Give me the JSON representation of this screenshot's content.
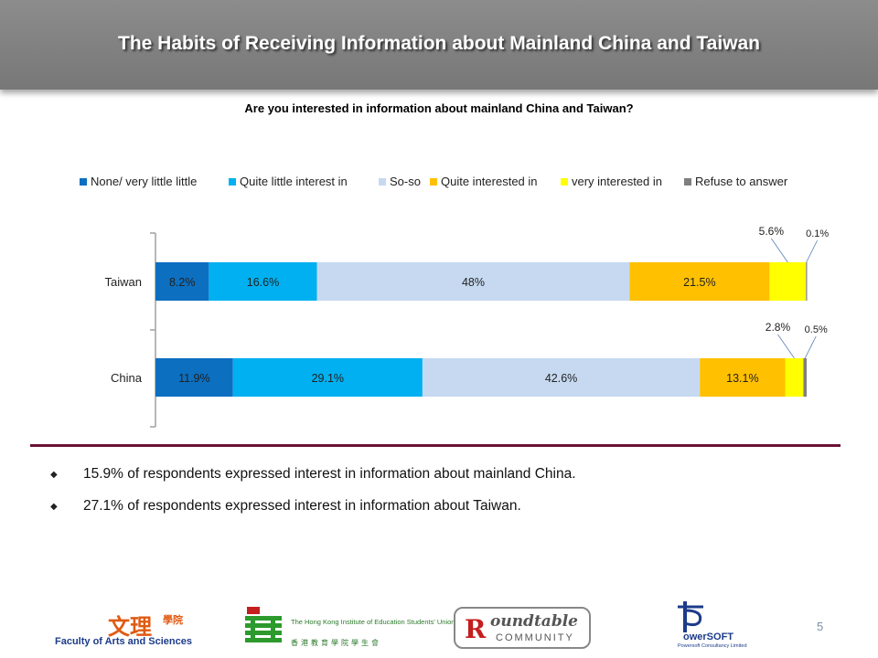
{
  "slide": {
    "title": "The Habits of Receiving Information about Mainland China and Taiwan",
    "page_number": "5"
  },
  "chart_data": {
    "type": "bar",
    "orientation": "horizontal",
    "stacked": true,
    "title": "Are you interested in information about mainland China and Taiwan?",
    "categories": [
      "Taiwan",
      "China"
    ],
    "series": [
      {
        "name": "None/ very little little",
        "values": [
          8.2,
          11.9
        ],
        "labels": [
          "8.2%",
          "11.9%"
        ],
        "color": "#0c6fc0"
      },
      {
        "name": "Quite little interest in",
        "values": [
          16.6,
          29.1
        ],
        "labels": [
          "16.6%",
          "29.1%"
        ],
        "color": "#00b0f0"
      },
      {
        "name": "So-so",
        "values": [
          48,
          42.6
        ],
        "labels": [
          "48%",
          "42.6%"
        ],
        "color": "#c6d9f1"
      },
      {
        "name": "Quite interested in",
        "values": [
          21.5,
          13.1
        ],
        "labels": [
          "21.5%",
          "13.1%"
        ],
        "color": "#ffc000"
      },
      {
        "name": "very interested in",
        "values": [
          5.6,
          2.8
        ],
        "labels": [
          "5.6%",
          "2.8%"
        ],
        "color": "#ffff00"
      },
      {
        "name": "Refuse to answer",
        "values": [
          0.1,
          0.5
        ],
        "labels": [
          "0.1%",
          "0.5%"
        ],
        "color": "#7f7f7f"
      }
    ],
    "legend_position": "top",
    "xlim": [
      0,
      100
    ],
    "grid": false
  },
  "bullets": [
    "15.9% of respondents expressed interest in information about mainland China.",
    "27.1% of respondents expressed interest in information about Taiwan."
  ],
  "footer": {
    "arts_logo_cn": "文理",
    "arts_logo_cn_small": "學院",
    "arts_logo_en": "Faculty of Arts and Sciences",
    "hkied_text": "The Hong Kong Institute of Education Students' Union",
    "hkied_cn": "香港教育學院學生會",
    "roundtable_main": "oundtable",
    "roundtable_sub": "COMMUNITY",
    "power_name": "owerSOFT",
    "power_sub": "Powersoft Consultancy Limited"
  }
}
